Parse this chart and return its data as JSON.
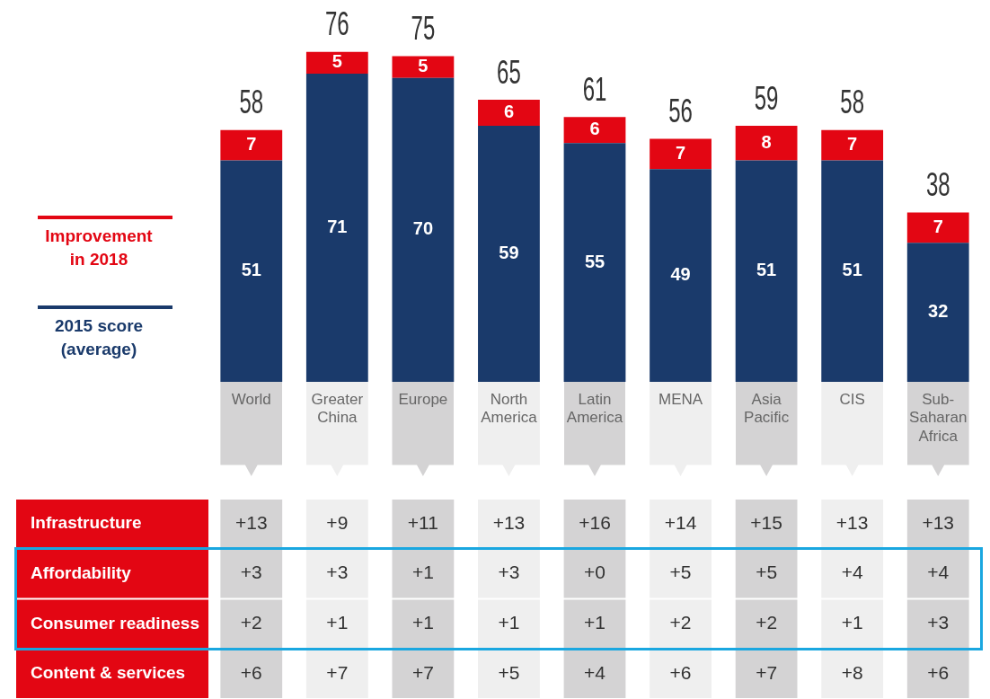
{
  "chart_data": [
    {
      "type": "bar",
      "stacked": true,
      "data_labels": true,
      "grid": false,
      "legend": "left",
      "categories": [
        "World",
        "Greater China",
        "Europe",
        "North America",
        "Latin America",
        "MENA",
        "Asia Pacific",
        "CIS",
        "Sub-Saharan Africa"
      ],
      "series": [
        {
          "name": "2015 score (average)",
          "color": "#1a3a6b",
          "values": [
            51,
            71,
            70,
            59,
            55,
            49,
            51,
            51,
            32
          ]
        },
        {
          "name": "Improvement in 2018",
          "color": "#e30613",
          "values": [
            7,
            5,
            5,
            6,
            6,
            7,
            8,
            7,
            7
          ]
        }
      ],
      "totals": [
        "58",
        "76",
        "75",
        "65",
        "61",
        "56",
        "59",
        "58",
        "38"
      ]
    },
    {
      "type": "heatmap",
      "tick_labels": "y",
      "categories": [
        null,
        null,
        null,
        null,
        null,
        null,
        null,
        null,
        null
      ],
      "y_categories": [
        "Infrastructure",
        "Affordability",
        "Consumer readiness",
        "Content & services"
      ],
      "cells": [
        [
          13,
          9,
          11,
          13,
          16,
          14,
          15,
          13,
          13
        ],
        [
          3,
          3,
          1,
          3,
          0,
          5,
          5,
          4,
          4
        ],
        [
          2,
          1,
          1,
          1,
          1,
          2,
          2,
          1,
          3
        ],
        [
          6,
          7,
          7,
          5,
          4,
          6,
          7,
          8,
          6
        ]
      ],
      "cell_labels": [
        [
          "+13",
          "+9",
          "+11",
          "+13",
          "+16",
          "+14",
          "+15",
          "+13",
          "+13"
        ],
        [
          "+3",
          "+3",
          "+1",
          "+3",
          "+0",
          "+5",
          "+5",
          "+4",
          "+4"
        ],
        [
          "+2",
          "+1",
          "+1",
          "+1",
          "+1",
          "+2",
          "+2",
          "+1",
          "+3"
        ],
        [
          "+6",
          "+7",
          "+7",
          "+5",
          "+4",
          "+6",
          "+7",
          "+8",
          "+6"
        ]
      ]
    }
  ]
}
